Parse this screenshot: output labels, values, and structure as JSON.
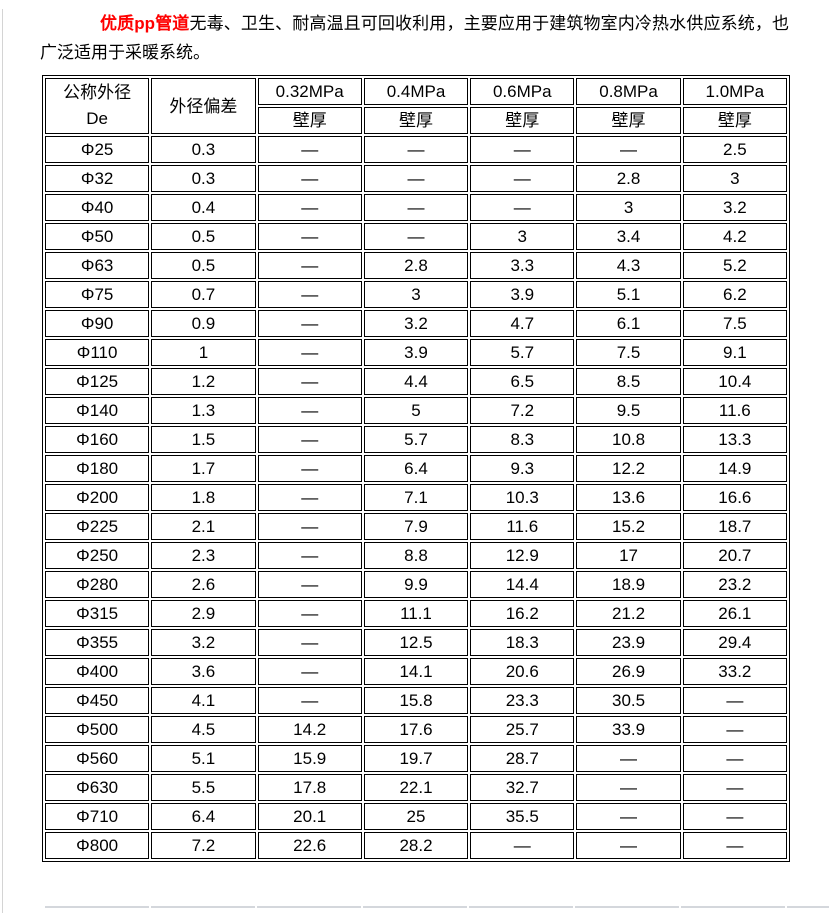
{
  "page": {
    "intro": {
      "highlight": "优质pp管道",
      "rest": "无毒、卫生、耐高温且可回收利用，主要应用于建筑物室内冷热水供应系统，也广泛适用于采暖系统。"
    },
    "colors": {
      "highlight": "#ff0000",
      "table_border": "#000000",
      "next_table_edge": "#d4d7dc"
    }
  },
  "table": {
    "headers": {
      "diameter": "公称外径",
      "diameter_sub": "De",
      "deviation": "外径偏差",
      "pressures": [
        "0.32MPa",
        "0.4MPa",
        "0.6MPa",
        "0.8MPa",
        "1.0MPa"
      ],
      "wall_thickness": "壁厚"
    },
    "rows": [
      [
        "Φ25",
        "0.3",
        "—",
        "—",
        "—",
        "—",
        "2.5"
      ],
      [
        "Φ32",
        "0.3",
        "—",
        "—",
        "—",
        "2.8",
        "3"
      ],
      [
        "Φ40",
        "0.4",
        "—",
        "—",
        "—",
        "3",
        "3.2"
      ],
      [
        "Φ50",
        "0.5",
        "—",
        "—",
        "3",
        "3.4",
        "4.2"
      ],
      [
        "Φ63",
        "0.5",
        "—",
        "2.8",
        "3.3",
        "4.3",
        "5.2"
      ],
      [
        "Φ75",
        "0.7",
        "—",
        "3",
        "3.9",
        "5.1",
        "6.2"
      ],
      [
        "Φ90",
        "0.9",
        "—",
        "3.2",
        "4.7",
        "6.1",
        "7.5"
      ],
      [
        "Φ110",
        "1",
        "—",
        "3.9",
        "5.7",
        "7.5",
        "9.1"
      ],
      [
        "Φ125",
        "1.2",
        "—",
        "4.4",
        "6.5",
        "8.5",
        "10.4"
      ],
      [
        "Φ140",
        "1.3",
        "—",
        "5",
        "7.2",
        "9.5",
        "11.6"
      ],
      [
        "Φ160",
        "1.5",
        "—",
        "5.7",
        "8.3",
        "10.8",
        "13.3"
      ],
      [
        "Φ180",
        "1.7",
        "—",
        "6.4",
        "9.3",
        "12.2",
        "14.9"
      ],
      [
        "Φ200",
        "1.8",
        "—",
        "7.1",
        "10.3",
        "13.6",
        "16.6"
      ],
      [
        "Φ225",
        "2.1",
        "—",
        "7.9",
        "11.6",
        "15.2",
        "18.7"
      ],
      [
        "Φ250",
        "2.3",
        "—",
        "8.8",
        "12.9",
        "17",
        "20.7"
      ],
      [
        "Φ280",
        "2.6",
        "—",
        "9.9",
        "14.4",
        "18.9",
        "23.2"
      ],
      [
        "Φ315",
        "2.9",
        "—",
        "11.1",
        "16.2",
        "21.2",
        "26.1"
      ],
      [
        "Φ355",
        "3.2",
        "—",
        "12.5",
        "18.3",
        "23.9",
        "29.4"
      ],
      [
        "Φ400",
        "3.6",
        "—",
        "14.1",
        "20.6",
        "26.9",
        "33.2"
      ],
      [
        "Φ450",
        "4.1",
        "—",
        "15.8",
        "23.3",
        "30.5",
        "—"
      ],
      [
        "Φ500",
        "4.5",
        "14.2",
        "17.6",
        "25.7",
        "33.9",
        "—"
      ],
      [
        "Φ560",
        "5.1",
        "15.9",
        "19.7",
        "28.7",
        "—",
        "—"
      ],
      [
        "Φ630",
        "5.5",
        "17.8",
        "22.1",
        "32.7",
        "—",
        "—"
      ],
      [
        "Φ710",
        "6.4",
        "20.1",
        "25",
        "35.5",
        "—",
        "—"
      ],
      [
        "Φ800",
        "7.2",
        "22.6",
        "28.2",
        "—",
        "—",
        "—"
      ]
    ]
  }
}
